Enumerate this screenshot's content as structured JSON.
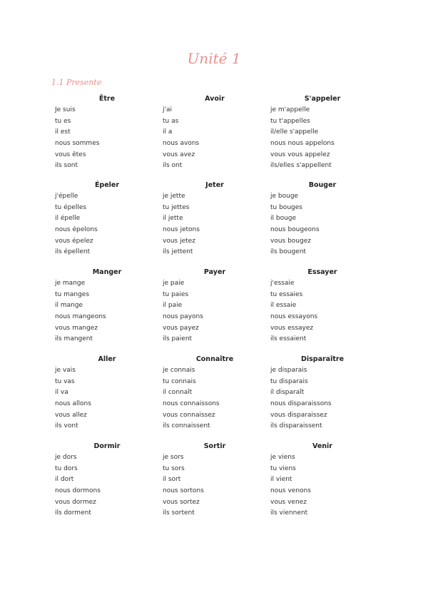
{
  "title": "Unité 1",
  "subtitle": "1.1 Presente",
  "accent_color": "#e98f8f",
  "verbs": [
    {
      "name": "Être",
      "forms": [
        "Je suis",
        "tu es",
        "il est",
        "nous sommes",
        "vous êtes",
        "ils sont"
      ]
    },
    {
      "name": "Avoir",
      "forms": [
        "j'ai",
        "tu as",
        "il a",
        "nous avons",
        "vous avez",
        "ils ont"
      ]
    },
    {
      "name": "S'appeler",
      "forms": [
        "je m'appelle",
        "tu t'appelles",
        "il/elle s'appelle",
        "nous nous appelons",
        "vous vous appelez",
        "ils/elles s'appellent"
      ]
    },
    {
      "name": "Épeler",
      "forms": [
        "j'épelle",
        "tu épelles",
        "il épelle",
        "nous épelons",
        "vous épelez",
        "ils épellent"
      ]
    },
    {
      "name": "Jeter",
      "forms": [
        "je jette",
        "tu jettes",
        "il jette",
        "nous jetons",
        "vous jetez",
        "ils jettent"
      ]
    },
    {
      "name": "Bouger",
      "forms": [
        "je bouge",
        "tu bouges",
        "il bouge",
        "nous bougeons",
        "vous bougez",
        "ils bougent"
      ]
    },
    {
      "name": "Manger",
      "forms": [
        "je mange",
        "tu manges",
        "il mange",
        "nous mangeons",
        "vous mangez",
        "ils mangent"
      ]
    },
    {
      "name": "Payer",
      "forms": [
        "je paie",
        "tu paies",
        "il paie",
        "nous payons",
        "vous payez",
        "ils paient"
      ]
    },
    {
      "name": "Essayer",
      "forms": [
        "j'essaie",
        "tu essaies",
        "il essaie",
        "nous essayons",
        "vous essayez",
        "ils essaient"
      ]
    },
    {
      "name": "Aller",
      "forms": [
        "je vais",
        "tu vas",
        "il va",
        "nous allons",
        "vous allez",
        "ils vont"
      ]
    },
    {
      "name": "Connaître",
      "forms": [
        "je connais",
        "tu connais",
        "il connaît",
        "nous connaissons",
        "vous connaissez",
        "ils connaissent"
      ]
    },
    {
      "name": "Disparaître",
      "forms": [
        "je disparais",
        "tu disparais",
        "il disparaît",
        "nous disparaissons",
        "vous disparaissez",
        "ils disparaissent"
      ]
    },
    {
      "name": "Dormir",
      "forms": [
        "je dors",
        "tu dors",
        "il dort",
        "nous dormons",
        "vous dormez",
        "ils dorment"
      ]
    },
    {
      "name": "Sortir",
      "forms": [
        "je sors",
        "tu sors",
        "il sort",
        "nous sortons",
        "vous sortez",
        "ils sortent"
      ]
    },
    {
      "name": "Venir",
      "forms": [
        "je viens",
        "tu viens",
        "il vient",
        "nous venons",
        "vous venez",
        "ils viennent"
      ]
    }
  ]
}
